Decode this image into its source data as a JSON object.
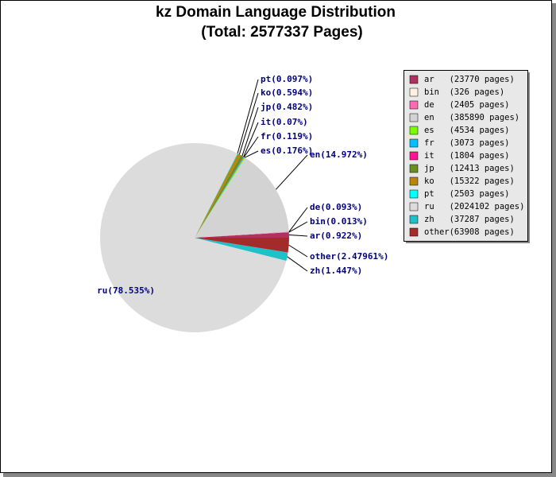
{
  "chart_data": {
    "type": "pie",
    "title": "kz Domain Language Distribution",
    "subtitle": "(Total: 2577337 Pages)",
    "categories": [
      "ar",
      "bin",
      "de",
      "en",
      "es",
      "fr",
      "it",
      "jp",
      "ko",
      "pt",
      "ru",
      "zh",
      "other"
    ],
    "values": [
      0.922,
      0.013,
      0.093,
      14.972,
      0.176,
      0.119,
      0.07,
      0.482,
      0.594,
      0.097,
      78.535,
      1.447,
      2.47961
    ],
    "value_labels": [
      "ar(0.922%)",
      "bin(0.013%)",
      "de(0.093%)",
      "en(14.972%)",
      "es(0.176%)",
      "fr(0.119%)",
      "it(0.07%)",
      "jp(0.482%)",
      "ko(0.594%)",
      "pt(0.097%)",
      "ru(78.535%)",
      "zh(1.447%)",
      "other(2.47961%)"
    ],
    "legend_labels": [
      "ar   (23770 pages)",
      "bin  (326 pages)",
      "de   (2405 pages)",
      "en   (385890 pages)",
      "es   (4534 pages)",
      "fr   (3073 pages)",
      "it   (1804 pages)",
      "jp   (12413 pages)",
      "ko   (15322 pages)",
      "pt   (2503 pages)",
      "ru   (2024102 pages)",
      "zh   (37287 pages)",
      "other(63908 pages)"
    ],
    "colors": [
      "#b03060",
      "#fff0e0",
      "#ff69b4",
      "#d3d3d3",
      "#7cfc00",
      "#00bfff",
      "#ff1493",
      "#6b8e23",
      "#b8860b",
      "#00ffff",
      "#dcdcdc",
      "#20c0c8",
      "#a52a2a"
    ],
    "legend_position": "upper right"
  }
}
